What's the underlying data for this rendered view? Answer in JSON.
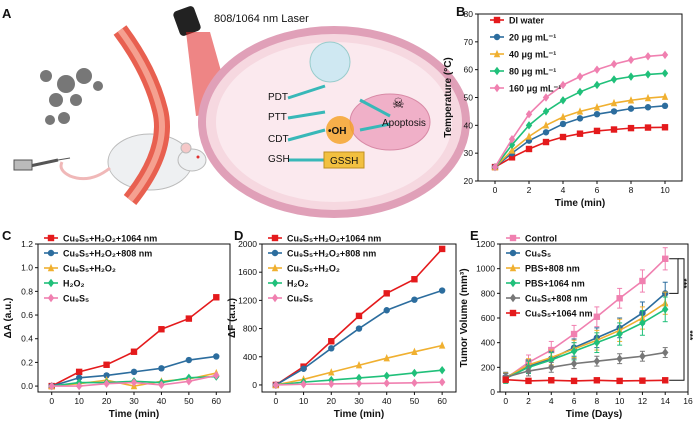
{
  "panel_a": {
    "letter": "A",
    "laser_label": "808/1064 nm Laser",
    "labels": [
      "PDT",
      "PTT",
      "CDT",
      "GSH",
      "•OH",
      "GSSH",
      "Apoptosis"
    ]
  },
  "chart_data": [
    {
      "panel": "B",
      "type": "line",
      "xlabel": "Time (min)",
      "ylabel": "Temperature (°C)",
      "xlim": [
        -1,
        11
      ],
      "ylim": [
        20,
        80
      ],
      "xticks": [
        0,
        2,
        4,
        6,
        8,
        10
      ],
      "yticks": [
        20,
        30,
        40,
        50,
        60,
        70,
        80
      ],
      "x": [
        0,
        1,
        2,
        3,
        4,
        5,
        6,
        7,
        8,
        9,
        10
      ],
      "series": [
        {
          "name": "DI water",
          "color": "#e41a1c",
          "marker": "square",
          "values": [
            25,
            28.5,
            31.5,
            34,
            35.8,
            37,
            38,
            38.5,
            39,
            39.2,
            39.3
          ]
        },
        {
          "name": "20 μg mL⁻¹",
          "color": "#2c6d9e",
          "marker": "circle",
          "values": [
            25,
            30,
            34.5,
            37.5,
            40.5,
            42.5,
            44,
            45,
            46,
            46.5,
            47
          ]
        },
        {
          "name": "40 μg mL⁻¹",
          "color": "#f0b030",
          "marker": "triangle",
          "values": [
            25,
            31,
            36,
            40,
            43,
            45,
            46.5,
            48,
            49,
            49.8,
            50.3
          ]
        },
        {
          "name": "80 μg mL⁻¹",
          "color": "#20c07a",
          "marker": "diamond",
          "values": [
            25,
            33,
            40,
            45,
            49,
            52,
            54.5,
            56.5,
            57.5,
            58.3,
            58.7
          ]
        },
        {
          "name": "160 μg mL⁻¹",
          "color": "#f080b0",
          "marker": "diamond",
          "values": [
            25,
            35,
            44,
            50,
            54.5,
            57.5,
            60,
            62,
            63.5,
            64.8,
            65.3
          ]
        }
      ]
    },
    {
      "panel": "C",
      "type": "line",
      "xlabel": "Time (min)",
      "ylabel": "ΔA (a.u.)",
      "xlim": [
        -5,
        65
      ],
      "ylim": [
        -0.05,
        1.2
      ],
      "xticks": [
        0,
        10,
        20,
        30,
        40,
        50,
        60
      ],
      "yticks": [
        0.0,
        0.2,
        0.4,
        0.6,
        0.8,
        1.0,
        1.2
      ],
      "x": [
        0,
        10,
        20,
        30,
        40,
        50,
        60
      ],
      "series": [
        {
          "name": "Cu₉S₅+H₂O₂+1064 nm",
          "color": "#e41a1c",
          "marker": "square",
          "values": [
            0,
            0.12,
            0.18,
            0.29,
            0.48,
            0.57,
            0.75
          ]
        },
        {
          "name": "Cu₉S₅+H₂O₂+808 nm",
          "color": "#2c6d9e",
          "marker": "circle",
          "values": [
            0,
            0.07,
            0.09,
            0.12,
            0.15,
            0.22,
            0.25
          ]
        },
        {
          "name": "Cu₉S₅+H₂O₂",
          "color": "#f0b030",
          "marker": "triangle",
          "values": [
            0,
            0.02,
            0.05,
            0.0,
            0.04,
            0.06,
            0.11
          ]
        },
        {
          "name": "H₂O₂",
          "color": "#20c07a",
          "marker": "diamond",
          "values": [
            0,
            0.03,
            0.03,
            0.04,
            0.03,
            0.07,
            0.08
          ]
        },
        {
          "name": "Cu₉S₅",
          "color": "#f080b0",
          "marker": "diamond",
          "values": [
            0,
            0.0,
            0.02,
            0.03,
            0.01,
            0.04,
            0.09
          ]
        }
      ]
    },
    {
      "panel": "D",
      "type": "line",
      "xlabel": "Time (min)",
      "ylabel": "ΔF (a.u.)",
      "xlim": [
        -5,
        65
      ],
      "ylim": [
        -100,
        2000
      ],
      "xticks": [
        0,
        10,
        20,
        30,
        40,
        50,
        60
      ],
      "yticks": [
        0,
        400,
        800,
        1200,
        1600,
        2000
      ],
      "x": [
        0,
        10,
        20,
        30,
        40,
        50,
        60
      ],
      "series": [
        {
          "name": "Cu₉S₅+H₂O₂+1064 nm",
          "color": "#e41a1c",
          "marker": "square",
          "values": [
            0,
            260,
            620,
            980,
            1300,
            1500,
            1930
          ]
        },
        {
          "name": "Cu₉S₅+H₂O₂+808 nm",
          "color": "#2c6d9e",
          "marker": "circle",
          "values": [
            0,
            230,
            520,
            800,
            1060,
            1210,
            1340
          ]
        },
        {
          "name": "Cu₉S₅+H₂O₂",
          "color": "#f0b030",
          "marker": "triangle",
          "values": [
            0,
            80,
            180,
            280,
            380,
            470,
            560
          ]
        },
        {
          "name": "H₂O₂",
          "color": "#20c07a",
          "marker": "diamond",
          "values": [
            0,
            40,
            70,
            100,
            130,
            170,
            210
          ]
        },
        {
          "name": "Cu₉S₅",
          "color": "#f080b0",
          "marker": "diamond",
          "values": [
            0,
            10,
            15,
            20,
            25,
            30,
            40
          ]
        }
      ]
    },
    {
      "panel": "E",
      "type": "line",
      "xlabel": "Time (Days)",
      "ylabel": "Tumor Volume (mm³)",
      "xlim": [
        -0.5,
        16
      ],
      "ylim": [
        0,
        1200
      ],
      "xticks": [
        0,
        2,
        4,
        6,
        8,
        10,
        12,
        14,
        16
      ],
      "yticks": [
        0,
        200,
        400,
        600,
        800,
        1000,
        1200
      ],
      "x": [
        0,
        2,
        4,
        6,
        8,
        10,
        12,
        14
      ],
      "significance": [
        "***",
        "***"
      ],
      "series": [
        {
          "name": "Control",
          "color": "#f080b0",
          "marker": "square",
          "values": [
            110,
            240,
            340,
            470,
            610,
            760,
            900,
            1080
          ],
          "err": [
            40,
            60,
            70,
            70,
            80,
            80,
            90,
            90
          ]
        },
        {
          "name": "Cu₉S₅",
          "color": "#2c6d9e",
          "marker": "circle",
          "values": [
            120,
            210,
            270,
            360,
            440,
            520,
            640,
            800
          ],
          "err": [
            40,
            50,
            60,
            70,
            80,
            80,
            90,
            90
          ]
        },
        {
          "name": "PBS+808 nm",
          "color": "#f0b030",
          "marker": "triangle",
          "values": [
            115,
            220,
            280,
            350,
            420,
            500,
            600,
            720
          ],
          "err": [
            40,
            50,
            60,
            70,
            80,
            90,
            90,
            90
          ]
        },
        {
          "name": "PBS+1064 nm",
          "color": "#20c07a",
          "marker": "diamond",
          "values": [
            110,
            200,
            260,
            330,
            400,
            470,
            560,
            670
          ],
          "err": [
            40,
            50,
            60,
            70,
            80,
            90,
            100,
            100
          ]
        },
        {
          "name": "Cu₉S₅+808 nm",
          "color": "#777777",
          "marker": "diamond",
          "values": [
            120,
            170,
            200,
            230,
            250,
            270,
            290,
            320
          ],
          "err": [
            30,
            40,
            40,
            40,
            40,
            40,
            40,
            40
          ]
        },
        {
          "name": "Cu₉S₅+1064 nm",
          "color": "#e41a1c",
          "marker": "square",
          "values": [
            100,
            90,
            95,
            90,
            95,
            90,
            92,
            95
          ],
          "err": [
            20,
            20,
            20,
            15,
            15,
            15,
            15,
            15
          ]
        }
      ]
    }
  ]
}
